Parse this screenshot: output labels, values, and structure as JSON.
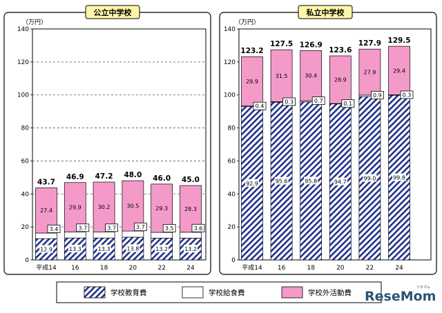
{
  "legend": {
    "items": [
      {
        "name": "学校教育費",
        "pattern": "hatch"
      },
      {
        "name": "学校給食費",
        "pattern": "white"
      },
      {
        "name": "学校外活動費",
        "pattern": "pink"
      }
    ]
  },
  "watermark": {
    "logo_text": "ReseMom",
    "logo_small": "リセマム"
  },
  "colors": {
    "pink": "#f49ac9",
    "hatch": "#1e2f8c",
    "title_bg": "#fff7a8",
    "watermark": "#2a5470"
  },
  "chart_data": [
    {
      "type": "bar",
      "stacked": true,
      "title": "公立中学校",
      "unit": "（万円）",
      "categories": [
        "平成14",
        "16",
        "18",
        "20",
        "22",
        "24"
      ],
      "ylim": [
        0,
        140
      ],
      "yticks": [
        0,
        20,
        40,
        60,
        80,
        100,
        120,
        140
      ],
      "grid": true,
      "series": [
        {
          "name": "学校教育費",
          "values": [
            12.9,
            13.3,
            13.3,
            13.8,
            13.2,
            13.2
          ],
          "labels": [
            "12.9",
            "13.3",
            "13.3",
            "13.8",
            "13.2",
            "13.2"
          ]
        },
        {
          "name": "学校給食費",
          "values": [
            3.4,
            3.7,
            3.7,
            3.7,
            3.5,
            3.6
          ],
          "labels": [
            "3.4",
            "3.7",
            "3.7",
            "3.7",
            "3.5",
            "3.6"
          ]
        },
        {
          "name": "学校外活動費",
          "values": [
            27.4,
            29.9,
            30.2,
            30.5,
            29.3,
            28.3
          ],
          "labels": [
            "27.4",
            "29.9",
            "30.2",
            "30.5",
            "29.3",
            "28.3"
          ]
        }
      ],
      "totals": [
        "43.7",
        "46.9",
        "47.2",
        "48.0",
        "46.0",
        "45.0"
      ]
    },
    {
      "type": "bar",
      "stacked": true,
      "title": "私立中学校",
      "unit": "（万円）",
      "categories": [
        "平成14",
        "16",
        "18",
        "20",
        "22",
        "24"
      ],
      "ylim": [
        0,
        140
      ],
      "yticks": [
        0,
        20,
        40,
        60,
        80,
        100,
        120,
        140
      ],
      "grid": false,
      "series": [
        {
          "name": "学校教育費",
          "values": [
            92.9,
            95.6,
            95.8,
            94.7,
            99.0,
            99.8
          ],
          "labels": [
            "92.9",
            "95.6",
            "95.8",
            "94.7",
            "99.0",
            "99.8"
          ]
        },
        {
          "name": "学校給食費",
          "values": [
            0.4,
            0.3,
            0.7,
            0.1,
            0.9,
            0.3
          ],
          "labels": [
            "0.4",
            "0.3",
            "0.7",
            "0.1",
            "0.9",
            "0.3"
          ]
        },
        {
          "name": "学校外活動費",
          "values": [
            29.9,
            31.5,
            30.4,
            28.9,
            27.9,
            29.4
          ],
          "labels": [
            "29.9",
            "31.5",
            "30.4",
            "28.9",
            "27.9",
            "29.4"
          ]
        }
      ],
      "totals": [
        "123.2",
        "127.5",
        "126.9",
        "123.6",
        "127.9",
        "129.5"
      ]
    }
  ]
}
